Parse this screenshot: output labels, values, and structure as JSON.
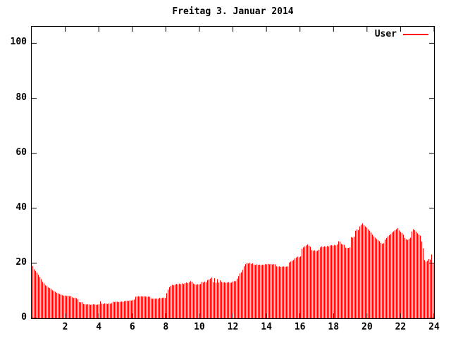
{
  "title": "Freitag 3. Januar 2014",
  "legend": {
    "label": "User",
    "color": "#ff0000"
  },
  "colors": {
    "background": "#ffffff",
    "axis": "#000000",
    "text": "#000000",
    "bar": "#ff0000"
  },
  "chart_data": {
    "type": "bar",
    "title": "Freitag 3. Januar 2014",
    "xlabel": "",
    "ylabel": "",
    "xlim": [
      0,
      24
    ],
    "ylim": [
      0,
      106
    ],
    "x_tick_labels": [
      "2",
      "4",
      "6",
      "8",
      "10",
      "12",
      "14",
      "16",
      "18",
      "20",
      "22",
      "24"
    ],
    "x_ticks": [
      2,
      4,
      6,
      8,
      10,
      12,
      14,
      16,
      18,
      20,
      22,
      24
    ],
    "y_ticks": [
      0,
      20,
      40,
      60,
      80,
      100
    ],
    "y_tick_labels": [
      "0",
      "20",
      "40",
      "60",
      "80",
      "100"
    ],
    "grid": false,
    "legend_position": "top-right",
    "series": [
      {
        "name": "User",
        "color": "#ff0000",
        "interval_minutes": 5,
        "x_unit": "hour-of-day",
        "values": [
          19.0,
          17.8,
          17.2,
          16.6,
          15.8,
          15.0,
          14.2,
          13.3,
          12.7,
          12.0,
          11.7,
          11.2,
          11.0,
          10.6,
          10.2,
          9.9,
          9.6,
          9.3,
          9.0,
          8.8,
          8.6,
          8.4,
          8.2,
          8.3,
          8.1,
          8.2,
          8.0,
          8.1,
          7.6,
          7.4,
          7.5,
          7.3,
          6.9,
          5.9,
          5.8,
          5.8,
          5.2,
          5.1,
          5.0,
          5.1,
          5.0,
          4.9,
          5.0,
          5.1,
          5.0,
          4.9,
          5.0,
          5.1,
          6.2,
          5.3,
          5.2,
          5.4,
          5.3,
          5.2,
          5.4,
          5.3,
          5.5,
          6.0,
          5.9,
          6.1,
          6.0,
          5.9,
          6.0,
          6.1,
          6.0,
          6.2,
          6.3,
          6.4,
          6.3,
          6.5,
          6.4,
          6.6,
          6.8,
          7.8,
          7.9,
          8.0,
          7.9,
          8.0,
          7.9,
          8.0,
          7.9,
          7.8,
          7.9,
          7.8,
          7.2,
          7.1,
          7.2,
          7.1,
          7.2,
          7.1,
          7.4,
          7.3,
          7.4,
          7.5,
          7.4,
          9.1,
          10.4,
          11.3,
          11.8,
          12.2,
          12.0,
          12.3,
          12.5,
          12.3,
          12.6,
          12.4,
          12.7,
          12.5,
          12.8,
          13.0,
          12.8,
          13.1,
          13.5,
          13.3,
          12.6,
          12.4,
          12.2,
          12.4,
          12.3,
          12.5,
          13.2,
          13.0,
          13.4,
          13.1,
          13.9,
          14.1,
          14.4,
          14.8,
          13.1,
          14.6,
          12.9,
          14.2,
          13.0,
          13.8,
          13.2,
          13.0,
          13.1,
          12.9,
          13.0,
          13.1,
          12.9,
          13.0,
          13.4,
          13.5,
          13.5,
          14.4,
          15.3,
          16.3,
          16.7,
          17.6,
          18.9,
          19.7,
          20.1,
          19.9,
          20.2,
          19.8,
          20.0,
          19.5,
          19.4,
          19.6,
          19.4,
          19.5,
          19.3,
          19.5,
          19.4,
          19.7,
          19.6,
          19.8,
          19.6,
          19.7,
          19.5,
          19.7,
          19.6,
          18.9,
          18.8,
          18.9,
          18.7,
          18.8,
          18.9,
          18.7,
          18.8,
          18.9,
          20.3,
          20.6,
          20.9,
          21.2,
          21.8,
          22.1,
          22.4,
          22.2,
          22.5,
          25.3,
          25.8,
          26.1,
          26.5,
          26.8,
          26.4,
          26.0,
          24.8,
          24.5,
          24.7,
          24.4,
          24.6,
          24.9,
          25.8,
          26.1,
          25.9,
          26.2,
          26.0,
          26.3,
          26.1,
          26.5,
          26.6,
          26.4,
          26.7,
          26.5,
          26.8,
          28.0,
          27.8,
          27.0,
          26.8,
          26.7,
          25.7,
          25.5,
          25.6,
          25.8,
          29.5,
          29.3,
          29.7,
          31.8,
          32.3,
          32.0,
          33.4,
          34.0,
          34.5,
          33.8,
          33.4,
          33.0,
          32.3,
          31.8,
          31.2,
          30.4,
          29.8,
          29.3,
          28.8,
          28.4,
          28.0,
          27.4,
          27.1,
          27.3,
          28.6,
          29.2,
          29.8,
          30.2,
          30.6,
          31.2,
          31.6,
          32.0,
          32.4,
          32.8,
          31.9,
          31.4,
          31.0,
          30.4,
          29.2,
          28.7,
          28.5,
          28.9,
          29.3,
          31.6,
          32.4,
          32.0,
          31.5,
          30.9,
          30.4,
          30.0,
          27.9,
          25.4,
          21.2,
          20.6,
          20.9,
          21.5,
          21.3,
          23.2,
          20.0
        ]
      }
    ]
  }
}
